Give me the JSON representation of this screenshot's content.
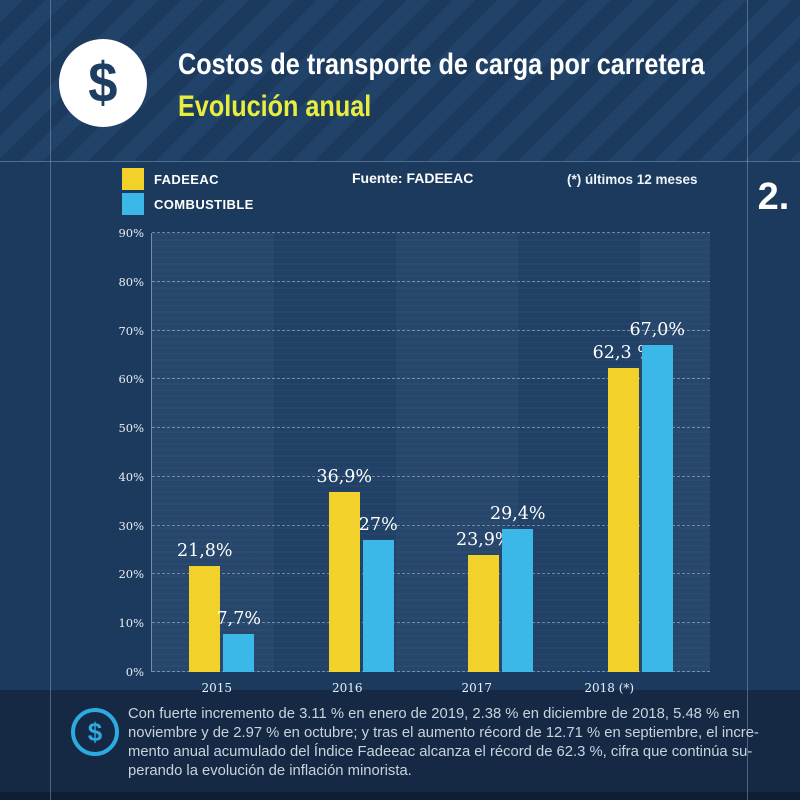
{
  "header": {
    "title": "Costos de transporte de carga por carretera",
    "subtitle": "Evolución anual",
    "icon": "dollar-icon"
  },
  "section_number": "2.",
  "legend": [
    {
      "label": "FADEEAC",
      "color": "#f3d12b"
    },
    {
      "label": "COMBUSTIBLE",
      "color": "#3cb8e8"
    }
  ],
  "source_label": "Fuente: FADEEAC",
  "footnote_label": "(*)  últimos 12 meses",
  "chart_data": {
    "type": "bar",
    "title": "Costos de transporte de carga por carretera — Evolución anual",
    "categories": [
      "2015",
      "2016",
      "2017",
      "2018 (*)"
    ],
    "series": [
      {
        "name": "FADEEAC",
        "color": "#f3d12b",
        "values": [
          21.8,
          36.9,
          23.9,
          62.3
        ],
        "labels": [
          "21,8%",
          "36,9%",
          "23,9%",
          "62,3 %"
        ]
      },
      {
        "name": "COMBUSTIBLE",
        "color": "#3cb8e8",
        "values": [
          7.7,
          27.0,
          29.4,
          67.0
        ],
        "labels": [
          "7,7%",
          "27%",
          "29,4%",
          "67,0%"
        ]
      }
    ],
    "xlabel": "",
    "ylabel": "",
    "ylim": [
      0,
      90
    ],
    "ytick_step": 10,
    "ytick_suffix": "%",
    "grid": "dashed-horizontal",
    "legend_position": "top-left"
  },
  "footer": {
    "icon": "dollar-icon",
    "text": "Con fuerte incremento de 3.11 % en enero de 2019, 2.38 % en diciembre de 2018, 5.48 % en\nnoviembre y de 2.97 % en octubre; y tras el aumento récord de 12.71 % en septiembre, el incre-\nmento anual acumulado del Índice Fadeeac alcanza el récord de 62.3 %, cifra que continúa su-\nperando la evolución de inflación minorista."
  },
  "colors": {
    "background": "#1b3a5e",
    "header_stripe": "#21436a",
    "footer_background": "#152944",
    "bottom_strip": "#0e1e33",
    "accent_yellow": "#f3d12b",
    "accent_cyan": "#3cb8e8",
    "subtitle_yellow": "#e9ee3e",
    "text_white": "#ffffff",
    "footer_text": "#c9d3de"
  }
}
